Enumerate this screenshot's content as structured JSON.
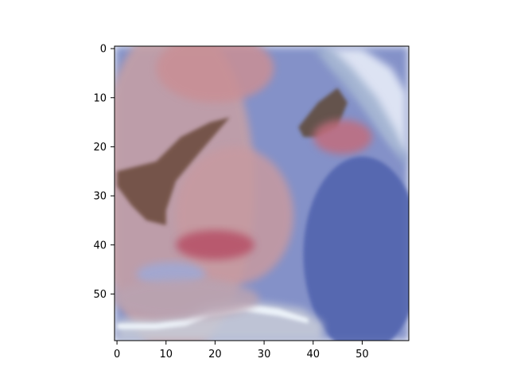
{
  "chart_data": {
    "type": "heatmap",
    "title": "",
    "xlabel": "",
    "ylabel": "",
    "image_size": [
      60,
      60
    ],
    "xlim": [
      -0.5,
      59.5
    ],
    "ylim": [
      59.5,
      -0.5
    ],
    "x_ticks": [
      0,
      10,
      20,
      30,
      40,
      50
    ],
    "y_ticks": [
      0,
      10,
      20,
      30,
      40,
      50
    ],
    "x_tick_labels": [
      "0",
      "10",
      "20",
      "30",
      "40",
      "50"
    ],
    "y_tick_labels": [
      "0",
      "10",
      "20",
      "30",
      "40",
      "50"
    ],
    "grid": false,
    "legend": "none",
    "colors": {
      "blue_region": "#5d6fb5",
      "light_blue": "#8f9fd6",
      "pink_region": "#c99a9c",
      "red_region": "#c4707a",
      "dark_brown": "#6b4a3a",
      "highlight": "#e8eef8",
      "light_gray": "#c7c9d4"
    },
    "regions": [
      {
        "name": "background-blue",
        "shape": "rect",
        "cx": 29.5,
        "cy": 29.5,
        "rx": 30,
        "ry": 30,
        "color": "#6f80c0"
      },
      {
        "name": "left-pink-face",
        "shape": "ellipse",
        "cx": 12,
        "cy": 28,
        "rx": 16,
        "ry": 34,
        "color": "#c7a0a4"
      },
      {
        "name": "top-pink",
        "shape": "ellipse",
        "cx": 20,
        "cy": 4,
        "rx": 12,
        "ry": 7,
        "color": "#c98f95"
      },
      {
        "name": "center-pink",
        "shape": "ellipse",
        "cx": 24,
        "cy": 34,
        "rx": 12,
        "ry": 14,
        "color": "#c79aa0"
      },
      {
        "name": "mouth-red",
        "shape": "ellipse",
        "cx": 20,
        "cy": 40,
        "rx": 8,
        "ry": 3,
        "color": "#b65066"
      },
      {
        "name": "eye-left-dark",
        "shape": "poly",
        "points": [
          [
            0,
            25
          ],
          [
            8,
            23
          ],
          [
            13,
            18
          ],
          [
            19,
            15
          ],
          [
            23,
            14
          ],
          [
            17,
            21
          ],
          [
            12,
            27
          ],
          [
            10,
            33
          ],
          [
            10,
            36
          ],
          [
            6,
            35
          ],
          [
            3,
            32
          ],
          [
            0,
            28
          ]
        ],
        "color": "#6b4a3a"
      },
      {
        "name": "eye-right-dark",
        "shape": "poly",
        "points": [
          [
            37,
            16
          ],
          [
            41,
            11
          ],
          [
            45,
            8
          ],
          [
            47,
            11
          ],
          [
            45,
            16
          ],
          [
            41,
            18
          ],
          [
            38,
            18
          ]
        ],
        "color": "#5e4838"
      },
      {
        "name": "right-eye-pink",
        "shape": "ellipse",
        "cx": 46,
        "cy": 18,
        "rx": 6,
        "ry": 3.5,
        "color": "#c16d7e"
      },
      {
        "name": "right-blue-dark",
        "shape": "ellipse",
        "cx": 50,
        "cy": 42,
        "rx": 12,
        "ry": 20,
        "color": "#4f62ad"
      },
      {
        "name": "light-blue-lower-left",
        "shape": "ellipse",
        "cx": 11,
        "cy": 46,
        "rx": 7,
        "ry": 2.5,
        "color": "#9fa9d6"
      },
      {
        "name": "hair-highlight",
        "shape": "poly",
        "points": [
          [
            42,
            0
          ],
          [
            50,
            0
          ],
          [
            56,
            4
          ],
          [
            59,
            9
          ],
          [
            59,
            22
          ],
          [
            56,
            19
          ],
          [
            52,
            13
          ],
          [
            47,
            6
          ],
          [
            44,
            3
          ]
        ],
        "color": "#e2e8f6"
      },
      {
        "name": "hair-shadow",
        "shape": "poly",
        "points": [
          [
            40,
            0
          ],
          [
            44,
            0
          ],
          [
            48,
            4
          ],
          [
            53,
            10
          ],
          [
            57,
            17
          ],
          [
            59,
            22
          ],
          [
            59,
            24
          ],
          [
            55,
            19
          ],
          [
            50,
            12
          ],
          [
            45,
            6
          ]
        ],
        "color": "#9fb0cf"
      },
      {
        "name": "bottom-light-band",
        "shape": "poly",
        "points": [
          [
            0,
            55
          ],
          [
            8,
            55
          ],
          [
            14,
            54
          ],
          [
            18,
            52
          ],
          [
            24,
            51
          ],
          [
            32,
            52
          ],
          [
            38,
            53
          ],
          [
            42,
            56
          ],
          [
            42,
            59.5
          ],
          [
            0,
            59.5
          ]
        ],
        "color": "#c8ccd8"
      },
      {
        "name": "bottom-white-stripe",
        "shape": "poly",
        "points": [
          [
            0,
            56
          ],
          [
            8,
            56
          ],
          [
            14,
            55
          ],
          [
            19,
            53
          ],
          [
            26,
            52
          ],
          [
            33,
            53
          ],
          [
            39,
            55
          ],
          [
            39,
            56
          ],
          [
            33,
            54.5
          ],
          [
            26,
            53.5
          ],
          [
            19,
            54.5
          ],
          [
            14,
            56.5
          ],
          [
            8,
            57.2
          ],
          [
            0,
            57.2
          ]
        ],
        "color": "#eef4fb"
      },
      {
        "name": "bottom-left-pink",
        "shape": "ellipse",
        "cx": 14,
        "cy": 51,
        "rx": 15,
        "ry": 4,
        "color": "#b9a3b1"
      }
    ]
  }
}
